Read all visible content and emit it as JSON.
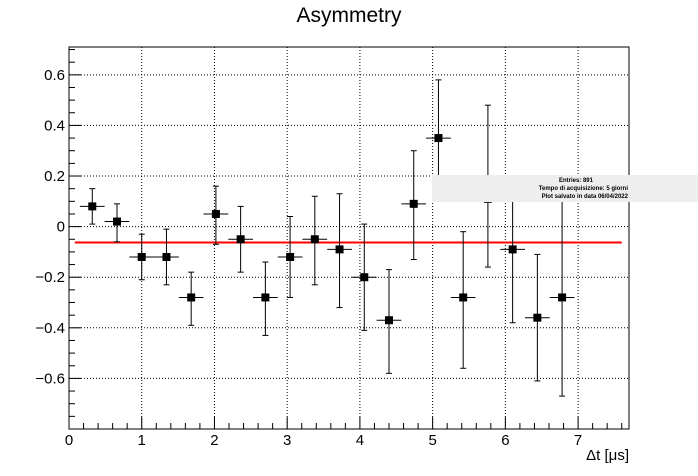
{
  "chart_data": {
    "type": "scatter",
    "title": "Asymmetry",
    "xlabel": "Δt [μs]",
    "ylabel": "",
    "xlim": [
      0,
      7.7
    ],
    "ylim": [
      -0.8,
      0.71
    ],
    "xticks": [
      0,
      1,
      2,
      3,
      4,
      5,
      6,
      7
    ],
    "xtick_labels": [
      "0",
      "1",
      "2",
      "3",
      "4",
      "5",
      "6",
      "7"
    ],
    "yticks": [
      -0.6,
      -0.4,
      -0.2,
      0,
      0.2,
      0.4,
      0.6
    ],
    "ytick_labels": [
      "−0.6",
      "−0.4",
      "−0.2",
      "0",
      "0.2",
      "0.4",
      "0.6"
    ],
    "grid": true,
    "bin_half_width": 0.17,
    "points": [
      {
        "x": 0.32,
        "y": 0.08,
        "ylow": 0.01,
        "yhigh": 0.15
      },
      {
        "x": 0.66,
        "y": 0.02,
        "ylow": -0.06,
        "yhigh": 0.09
      },
      {
        "x": 1.0,
        "y": -0.12,
        "ylow": -0.21,
        "yhigh": -0.03
      },
      {
        "x": 1.34,
        "y": -0.12,
        "ylow": -0.23,
        "yhigh": -0.01
      },
      {
        "x": 1.68,
        "y": -0.28,
        "ylow": -0.39,
        "yhigh": -0.18
      },
      {
        "x": 2.02,
        "y": 0.05,
        "ylow": -0.07,
        "yhigh": 0.16
      },
      {
        "x": 2.36,
        "y": -0.05,
        "ylow": -0.18,
        "yhigh": 0.08
      },
      {
        "x": 2.7,
        "y": -0.28,
        "ylow": -0.43,
        "yhigh": -0.14
      },
      {
        "x": 3.04,
        "y": -0.12,
        "ylow": -0.28,
        "yhigh": 0.04
      },
      {
        "x": 3.38,
        "y": -0.05,
        "ylow": -0.23,
        "yhigh": 0.12
      },
      {
        "x": 3.72,
        "y": -0.09,
        "ylow": -0.32,
        "yhigh": 0.13
      },
      {
        "x": 4.06,
        "y": -0.2,
        "ylow": -0.41,
        "yhigh": 0.01
      },
      {
        "x": 4.4,
        "y": -0.37,
        "ylow": -0.58,
        "yhigh": -0.17
      },
      {
        "x": 4.74,
        "y": 0.09,
        "ylow": -0.13,
        "yhigh": 0.3
      },
      {
        "x": 5.08,
        "y": 0.35,
        "ylow": 0.13,
        "yhigh": 0.58
      },
      {
        "x": 5.42,
        "y": -0.28,
        "ylow": -0.56,
        "yhigh": -0.02
      },
      {
        "x": 5.76,
        "y": 0.11,
        "ylow": -0.16,
        "yhigh": 0.48
      },
      {
        "x": 6.1,
        "y": -0.09,
        "ylow": -0.38,
        "yhigh": 0.2
      },
      {
        "x": 6.44,
        "y": -0.36,
        "ylow": -0.61,
        "yhigh": -0.11
      },
      {
        "x": 6.78,
        "y": -0.28,
        "ylow": -0.67,
        "yhigh": 0.1
      }
    ],
    "fit_line": {
      "y": -0.063,
      "x_from": 0.08,
      "x_to": 7.6,
      "color": "#ff0000"
    },
    "marker_color": "#000000"
  },
  "stats_box": {
    "line1": "Entries: 891",
    "line2": "Tempo di acquisizione: 5 giorni",
    "line3": "Plot salvato in data 06/04/2022"
  }
}
